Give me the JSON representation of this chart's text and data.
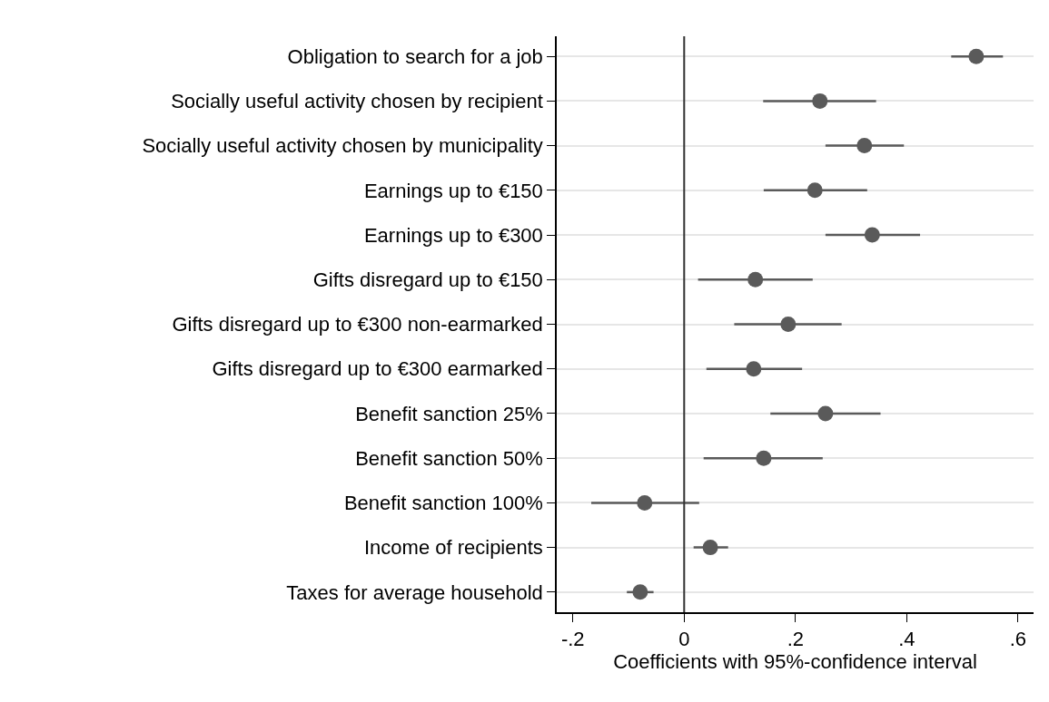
{
  "chart_data": {
    "type": "scatter",
    "orientation": "horizontal",
    "xlabel": "Coefficients with 95%-confidence interval",
    "categories": [
      "Obligation to search for a job",
      "Socially useful activity chosen by recipient",
      "Socially useful activity chosen by municipality",
      "Earnings up to €150",
      "Earnings up to €300",
      "Gifts disregard up to €150",
      "Gifts disregard up to €300 non-earmarked",
      "Gifts disregard up to €300 earmarked",
      "Benefit sanction 25%",
      "Benefit sanction 50%",
      "Benefit sanction 100%",
      "Income of recipients",
      "Taxes for average household"
    ],
    "series": [
      {
        "color": "#5a5a5a",
        "values": [
          0.525,
          0.244,
          0.324,
          0.235,
          0.338,
          0.128,
          0.187,
          0.125,
          0.254,
          0.143,
          -0.071,
          0.047,
          -0.079
        ],
        "errors": [
          [
            0.48,
            0.573
          ],
          [
            0.142,
            0.345
          ],
          [
            0.254,
            0.395
          ],
          [
            0.143,
            0.329
          ],
          [
            0.254,
            0.424
          ],
          [
            0.025,
            0.231
          ],
          [
            0.09,
            0.283
          ],
          [
            0.04,
            0.212
          ],
          [
            0.155,
            0.353
          ],
          [
            0.035,
            0.249
          ],
          [
            -0.167,
            0.027
          ],
          [
            0.017,
            0.079
          ],
          [
            -0.103,
            -0.055
          ]
        ]
      }
    ],
    "xlim": [
      -0.229,
      0.628
    ],
    "xticks": [
      {
        "value": -0.2,
        "label": "-.2"
      },
      0,
      {
        "value": 0.2,
        "label": ".2"
      },
      {
        "value": 0.4,
        "label": ".4"
      },
      {
        "value": 0.6,
        "label": ".6"
      }
    ],
    "ref_lines": [
      {
        "axis": "x",
        "value": 0,
        "color": "#333333"
      }
    ],
    "grid": "y",
    "marker": "circle"
  }
}
